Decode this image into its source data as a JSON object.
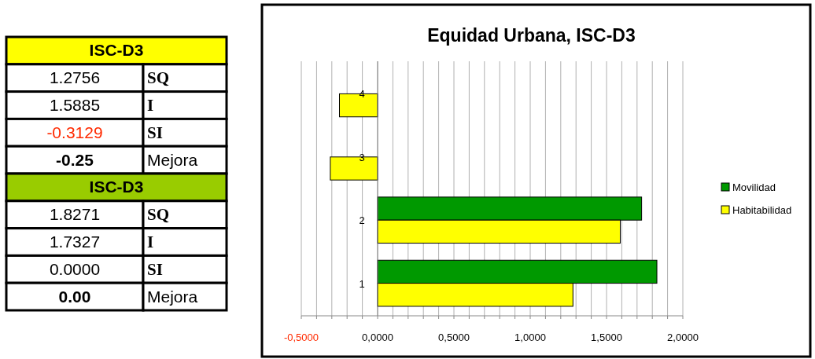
{
  "chart_data": [
    {
      "type": "other",
      "title": "ISC-D3",
      "colors": [
        "#ffff00"
      ],
      "annotations": [
        "1.2756",
        "SQ",
        "1.5885",
        "I",
        "-0.3129",
        "SI",
        "-0.25",
        "Mejora"
      ]
    },
    {
      "type": "other",
      "title": "ISC-D3",
      "colors": [
        "#99cc00"
      ],
      "annotations": [
        "1.8271",
        "SQ",
        "1.7327",
        "I",
        "0.0000",
        "SI",
        "0.00",
        "Mejora"
      ]
    },
    {
      "type": "bar",
      "orientation": "horizontal",
      "title": "Equidad Urbana, ISC-D3",
      "categories": [
        "4",
        "3",
        "2",
        "1"
      ],
      "series": [
        {
          "name": "Movilidad",
          "color": "#009900",
          "values": [
            0,
            0,
            1.73,
            1.83
          ]
        },
        {
          "name": "Habitabilidad",
          "color": "#ffff00",
          "values": [
            -0.25,
            -0.31,
            1.59,
            1.28
          ]
        }
      ],
      "xlim": [
        -0.5,
        2.0
      ],
      "xticks": [
        {
          "value": -0.5,
          "label": "-0,5000"
        },
        {
          "value": -0.4,
          "label": null
        },
        {
          "value": -0.3,
          "label": null
        },
        {
          "value": -0.2,
          "label": null
        },
        {
          "value": -0.1,
          "label": null
        },
        {
          "value": 0,
          "label": "0,0000"
        },
        {
          "value": 0.1,
          "label": null
        },
        {
          "value": 0.2,
          "label": null
        },
        {
          "value": 0.3,
          "label": null
        },
        {
          "value": 0.4,
          "label": null
        },
        {
          "value": 0.5,
          "label": "0,5000"
        },
        {
          "value": 0.6,
          "label": null
        },
        {
          "value": 0.7,
          "label": null
        },
        {
          "value": 0.8,
          "label": null
        },
        {
          "value": 0.9,
          "label": null
        },
        {
          "value": 1.0,
          "label": "1,0000"
        },
        {
          "value": 1.1,
          "label": null
        },
        {
          "value": 1.2,
          "label": null
        },
        {
          "value": 1.3,
          "label": null
        },
        {
          "value": 1.4,
          "label": null
        },
        {
          "value": 1.5,
          "label": "1,5000"
        },
        {
          "value": 1.6,
          "label": null
        },
        {
          "value": 1.7,
          "label": null
        },
        {
          "value": 1.8,
          "label": null
        },
        {
          "value": 1.9,
          "label": null
        },
        {
          "value": 2.0,
          "label": "2,0000"
        }
      ],
      "grid": "x",
      "legend": "right"
    }
  ]
}
